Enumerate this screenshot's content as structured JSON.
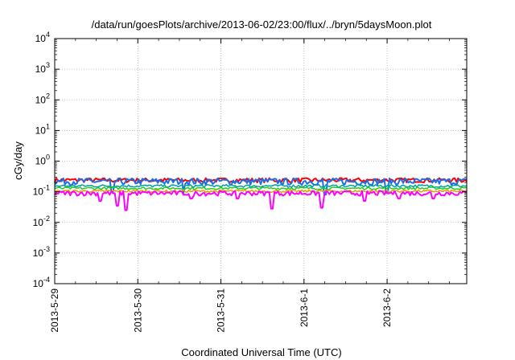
{
  "chart_data": {
    "type": "line",
    "title": "/data/run/goesPlots/archive/2013-06-02/23:00/flux/../bryn/5daysMoon.plot",
    "xlabel": "Coordinated Universal Time (UTC)",
    "ylabel": "cGy/day",
    "yscale": "log",
    "ylim": [
      0.0001,
      10000
    ],
    "xlim": [
      "2013-05-29 00:00",
      "2013-06-02 23:00"
    ],
    "x_ticks": [
      "2013-5-29",
      "2013-5-30",
      "2013-5-31",
      "2013-6-1",
      "2013-6-2"
    ],
    "y_ticks": [
      {
        "base": "10",
        "exp": "-4"
      },
      {
        "base": "10",
        "exp": "-3"
      },
      {
        "base": "10",
        "exp": "-2"
      },
      {
        "base": "10",
        "exp": "-1"
      },
      {
        "base": "10",
        "exp": "0"
      },
      {
        "base": "10",
        "exp": "1"
      },
      {
        "base": "10",
        "exp": "2"
      },
      {
        "base": "10",
        "exp": "3"
      },
      {
        "base": "10",
        "exp": "4"
      }
    ],
    "grid": true,
    "series": [
      {
        "color": "#ff0000",
        "level": 0.24,
        "spread": 0.05,
        "dips": []
      },
      {
        "color": "#1a6ee8",
        "level": 0.22,
        "spread": 0.07,
        "dips": [
          {
            "x": 0.7,
            "v": 0.1
          },
          {
            "x": 1.55,
            "v": 0.09
          },
          {
            "x": 3.25,
            "v": 0.08
          },
          {
            "x": 4.0,
            "v": 0.09
          }
        ]
      },
      {
        "color": "#00a0a0",
        "level": 0.155,
        "spread": 0.02,
        "dips": []
      },
      {
        "color": "#22cc22",
        "level": 0.13,
        "spread": 0.015,
        "dips": []
      },
      {
        "color": "#e0a000",
        "level": 0.105,
        "spread": 0.012,
        "dips": []
      },
      {
        "color": "#ff00ff",
        "level": 0.09,
        "spread": 0.02,
        "dips": [
          {
            "x": 0.55,
            "v": 0.05
          },
          {
            "x": 0.75,
            "v": 0.035
          },
          {
            "x": 0.85,
            "v": 0.025
          },
          {
            "x": 1.65,
            "v": 0.06
          },
          {
            "x": 2.2,
            "v": 0.06
          },
          {
            "x": 2.62,
            "v": 0.028
          },
          {
            "x": 3.22,
            "v": 0.03
          },
          {
            "x": 3.72,
            "v": 0.05
          },
          {
            "x": 4.15,
            "v": 0.06
          },
          {
            "x": 4.55,
            "v": 0.06
          },
          {
            "x": 4.98,
            "v": 0.07
          }
        ]
      }
    ]
  }
}
